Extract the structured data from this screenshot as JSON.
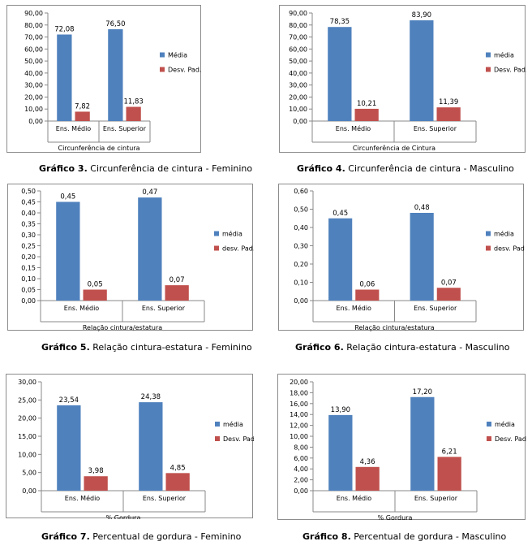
{
  "colors": {
    "media": "#4f81bd",
    "desvpad": "#c0504d"
  },
  "captions": [
    {
      "bold": "Gráfico 3.",
      "text": " Circunferência de cintura - Feminino"
    },
    {
      "bold": "Gráfico 4.",
      "text": " Circunferência de cintura - Masculino"
    },
    {
      "bold": "Gráfico 5.",
      "text": " Relação cintura-estatura - Feminino"
    },
    {
      "bold": "Gráfico 6.",
      "text": " Relação cintura-estatura - Masculino"
    },
    {
      "bold": "Gráfico 7.",
      "text": " Percentual de gordura - Feminino"
    },
    {
      "bold": "Gráfico 8.",
      "text": " Percentual de gordura - Masculino"
    }
  ],
  "chart_data": [
    {
      "type": "bar",
      "categories": [
        "Ens. Médio",
        "Ens. Superior"
      ],
      "xlabel": "Circunferência de cintura",
      "ylim": [
        0,
        90
      ],
      "ytick_step": 10,
      "yticks": [
        "0,00",
        "10,00",
        "20,00",
        "30,00",
        "40,00",
        "50,00",
        "60,00",
        "70,00",
        "80,00",
        "90,00"
      ],
      "legend_position": "right",
      "series": [
        {
          "name": "Média",
          "values": [
            72.08,
            76.5
          ],
          "labels": [
            "72,08",
            "76,50"
          ]
        },
        {
          "name": "Desv. Pad.",
          "values": [
            7.82,
            11.83
          ],
          "labels": [
            "7,82",
            "11,83"
          ]
        }
      ]
    },
    {
      "type": "bar",
      "categories": [
        "Ens. Médio",
        "Ens. Superior"
      ],
      "xlabel": "Circunferência de Cintura",
      "ylim": [
        0,
        90
      ],
      "ytick_step": 10,
      "yticks": [
        "0,00",
        "10,00",
        "20,00",
        "30,00",
        "40,00",
        "50,00",
        "60,00",
        "70,00",
        "80,00",
        "90,00"
      ],
      "legend_position": "right",
      "series": [
        {
          "name": "média",
          "values": [
            78.35,
            83.9
          ],
          "labels": [
            "78,35",
            "83,90"
          ]
        },
        {
          "name": "Desv. Pad.",
          "values": [
            10.21,
            11.39
          ],
          "labels": [
            "10,21",
            "11,39"
          ]
        }
      ]
    },
    {
      "type": "bar",
      "categories": [
        "Ens. Médio",
        "Ens. Superior"
      ],
      "xlabel": "Relação cintura/estatura",
      "ylim": [
        0,
        0.5
      ],
      "ytick_step": 0.05,
      "yticks": [
        "0,00",
        "0,05",
        "0,10",
        "0,15",
        "0,20",
        "0,25",
        "0,30",
        "0,35",
        "0,40",
        "0,45",
        "0,50"
      ],
      "legend_position": "right",
      "series": [
        {
          "name": "média",
          "values": [
            0.45,
            0.47
          ],
          "labels": [
            "0,45",
            "0,47"
          ]
        },
        {
          "name": "desv. Pad.",
          "values": [
            0.05,
            0.07
          ],
          "labels": [
            "0,05",
            "0,07"
          ]
        }
      ]
    },
    {
      "type": "bar",
      "categories": [
        "Ens. Médio",
        "Ens. Superior"
      ],
      "xlabel": "Relação cintura/estatura",
      "ylim": [
        0,
        0.6
      ],
      "ytick_step": 0.1,
      "yticks": [
        "0,00",
        "0,10",
        "0,20",
        "0,30",
        "0,40",
        "0,50",
        "0,60"
      ],
      "legend_position": "right",
      "series": [
        {
          "name": "média",
          "values": [
            0.45,
            0.48
          ],
          "labels": [
            "0,45",
            "0,48"
          ]
        },
        {
          "name": "desv. Pad.",
          "values": [
            0.06,
            0.07
          ],
          "labels": [
            "0,06",
            "0,07"
          ]
        }
      ]
    },
    {
      "type": "bar",
      "categories": [
        "Ens. Médio",
        "Ens. Superior"
      ],
      "xlabel": "% Gordura",
      "ylim": [
        0,
        30
      ],
      "ytick_step": 5,
      "yticks": [
        "0,00",
        "5,00",
        "10,00",
        "15,00",
        "20,00",
        "25,00",
        "30,00"
      ],
      "legend_position": "right",
      "series": [
        {
          "name": "média",
          "values": [
            23.54,
            24.38
          ],
          "labels": [
            "23,54",
            "24,38"
          ]
        },
        {
          "name": "Desv. Pad.",
          "values": [
            3.98,
            4.85
          ],
          "labels": [
            "3,98",
            "4,85"
          ]
        }
      ]
    },
    {
      "type": "bar",
      "categories": [
        "Ens. Médio",
        "Ens. Superior"
      ],
      "xlabel": "% Gordura",
      "ylim": [
        0,
        20
      ],
      "ytick_step": 2,
      "yticks": [
        "0,00",
        "2,00",
        "4,00",
        "6,00",
        "8,00",
        "10,00",
        "12,00",
        "14,00",
        "16,00",
        "18,00",
        "20,00"
      ],
      "legend_position": "right",
      "series": [
        {
          "name": "média",
          "values": [
            13.9,
            17.2
          ],
          "labels": [
            "13,90",
            "17,20"
          ]
        },
        {
          "name": "Desv. Pad.",
          "values": [
            4.36,
            6.21
          ],
          "labels": [
            "4,36",
            "6,21"
          ]
        }
      ]
    }
  ]
}
